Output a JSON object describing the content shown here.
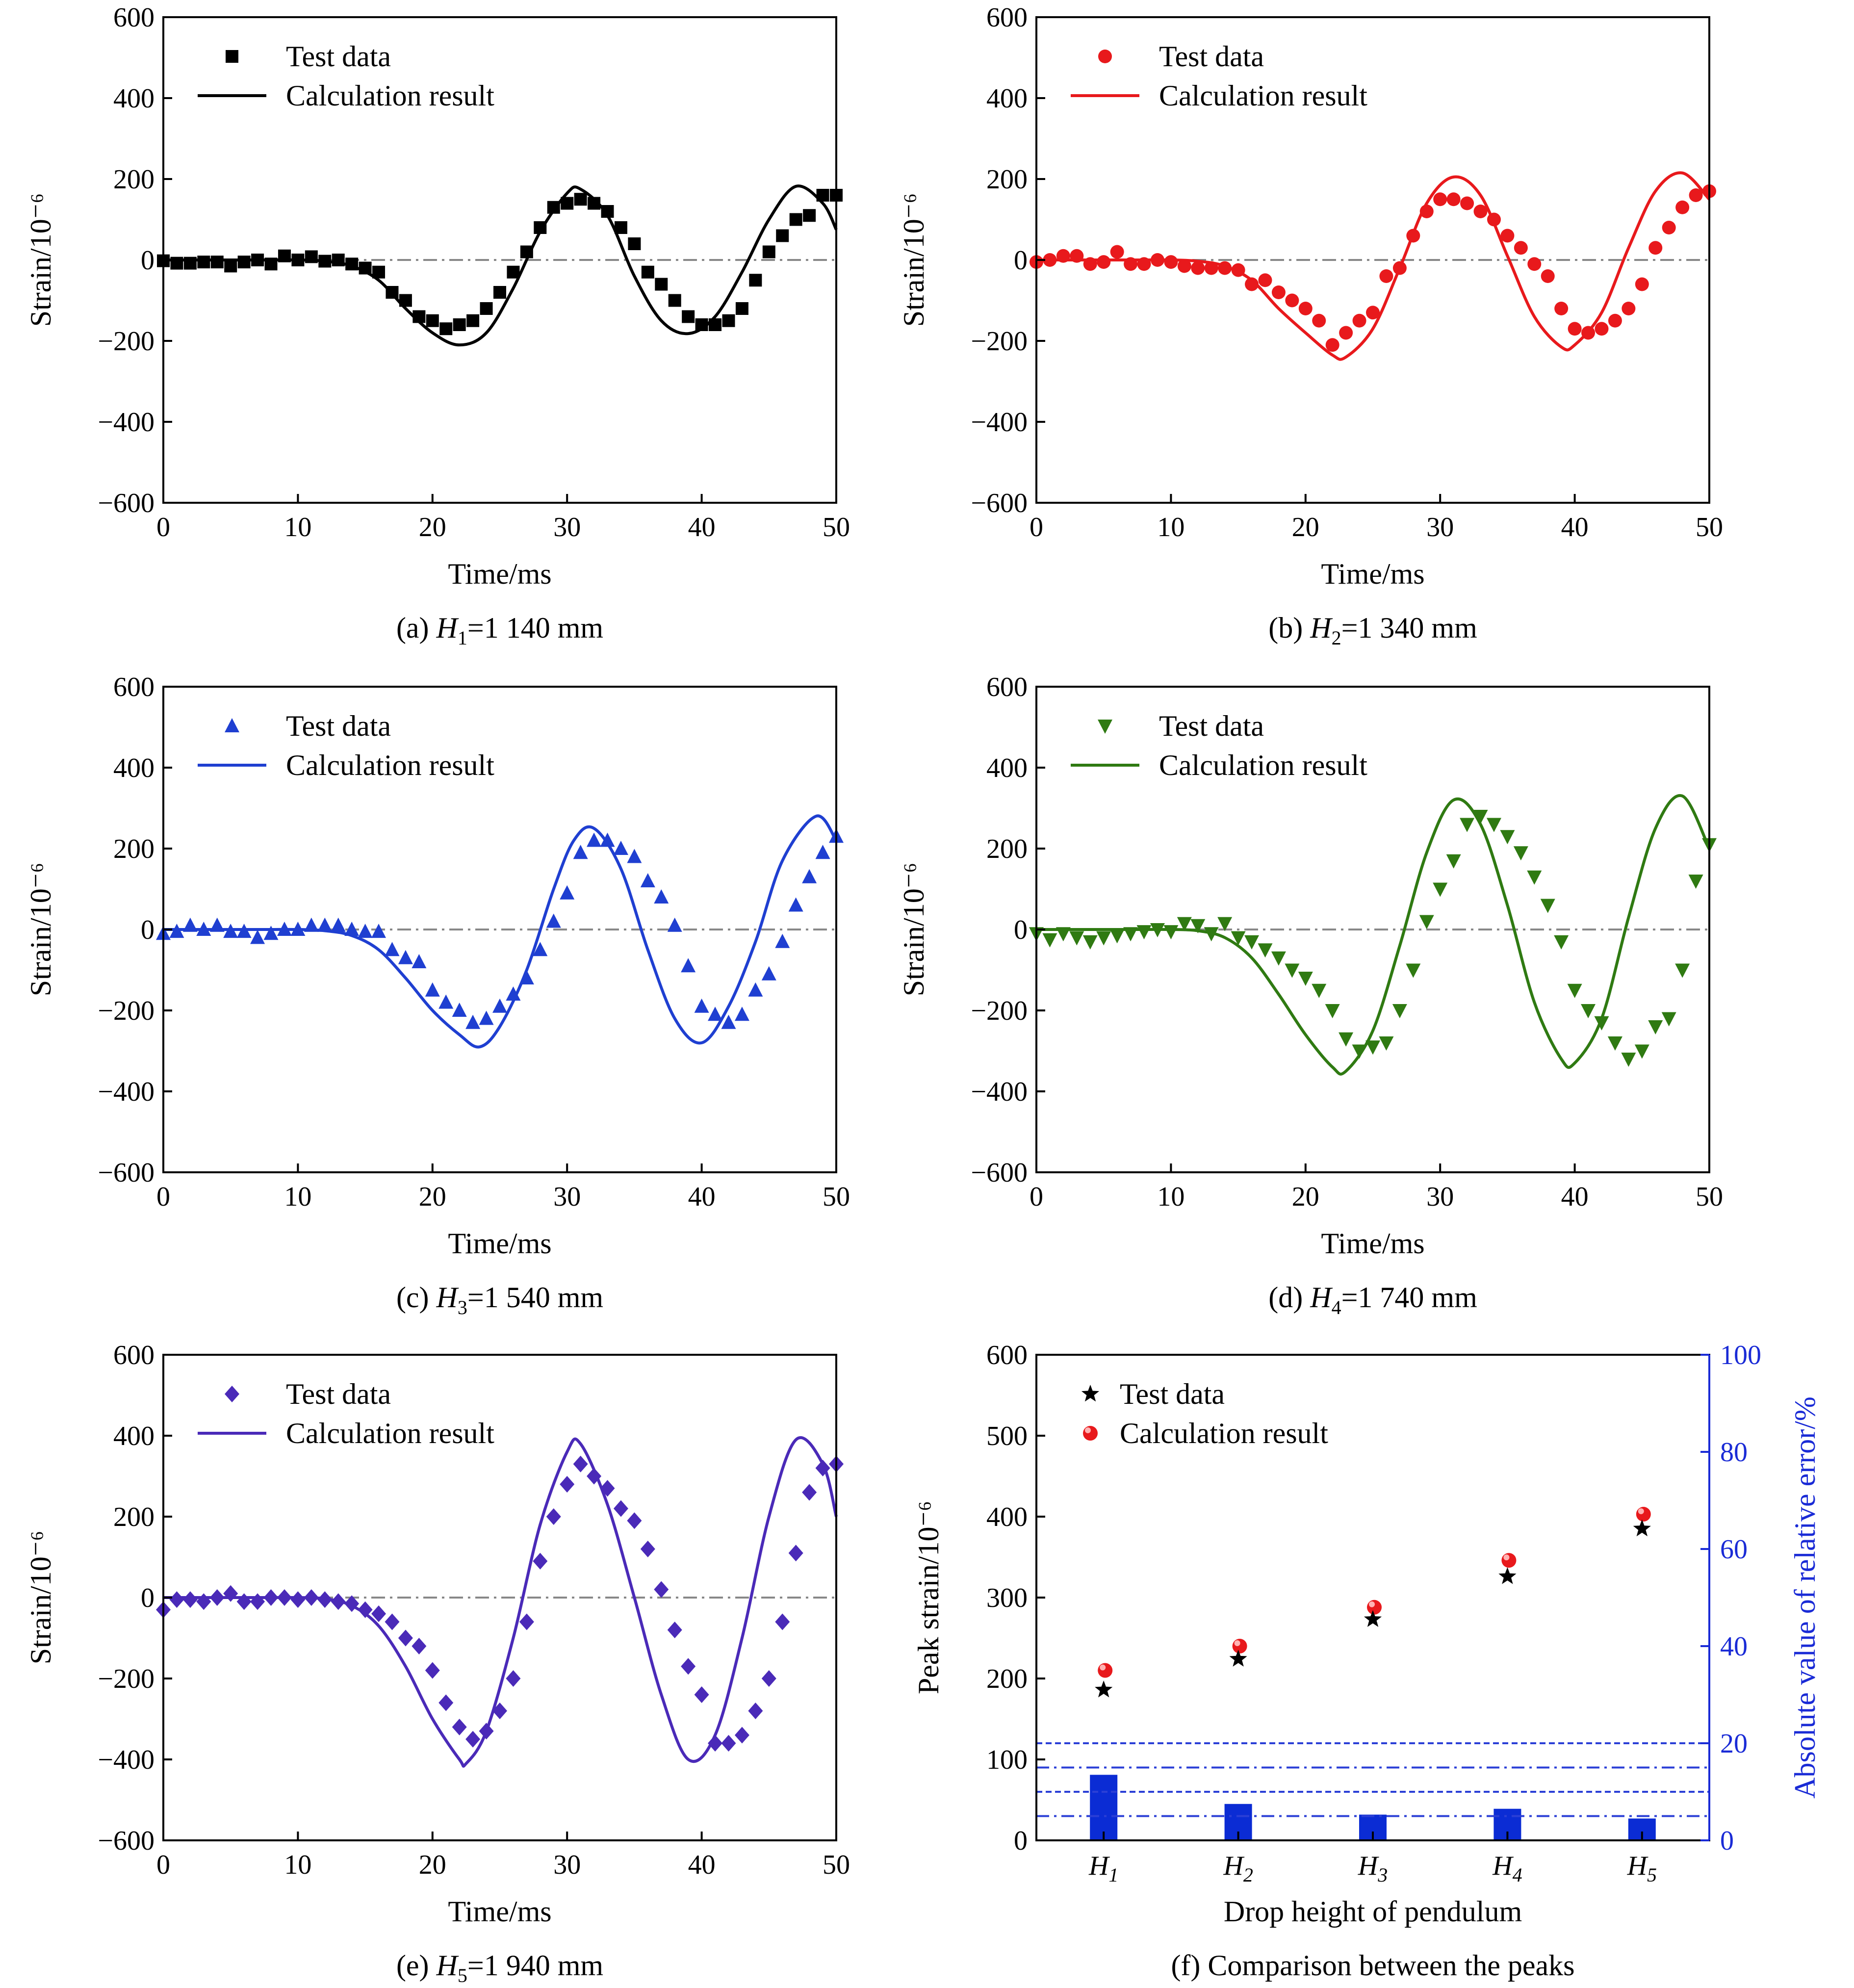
{
  "chart_data": [
    {
      "id": "a",
      "type": "line",
      "caption": {
        "prefix": "(a) ",
        "var": "H",
        "sub": "1",
        "rest": "=1 140 mm"
      },
      "xlabel": "Time/ms",
      "ylabel": "Strain/10⁻⁶",
      "xlim": [
        0,
        50
      ],
      "ylim": [
        -600,
        600
      ],
      "xticks": [
        0,
        10,
        20,
        30,
        40,
        50
      ],
      "yticks": [
        -600,
        -400,
        -200,
        0,
        200,
        400,
        600
      ],
      "ytick_labels": [
        "−600",
        "−400",
        "−200",
        "0",
        "200",
        "400",
        "600"
      ],
      "legend": {
        "position": "top-left",
        "test_label": "Test data",
        "calc_label": "Calculation result"
      },
      "color": "#000000",
      "marker": "square",
      "calc": {
        "x": [
          0,
          2,
          4,
          6,
          8,
          10,
          12,
          14,
          16,
          18,
          20,
          22,
          24,
          26,
          28,
          30,
          31,
          33,
          35,
          37,
          39,
          41,
          43,
          45,
          47,
          49,
          50
        ],
        "y": [
          0,
          0,
          0,
          0,
          0,
          0,
          -3,
          -15,
          -50,
          -120,
          -180,
          -210,
          -180,
          -70,
          70,
          165,
          175,
          110,
          -40,
          -150,
          -182,
          -140,
          -30,
          100,
          182,
          140,
          75
        ]
      },
      "test": {
        "x": [
          0,
          1,
          2,
          3,
          4,
          5,
          6,
          7,
          8,
          9,
          10,
          11,
          12,
          13,
          14,
          15,
          16,
          17,
          18,
          19,
          20,
          21,
          22,
          23,
          24,
          25,
          26,
          27,
          28,
          29,
          30,
          31,
          32,
          33,
          34,
          35,
          36,
          37,
          38,
          39,
          40,
          41,
          42,
          43,
          44,
          45,
          46,
          47,
          48,
          49,
          50
        ],
        "y": [
          -2,
          -8,
          -8,
          -5,
          -5,
          -15,
          -5,
          0,
          -10,
          10,
          0,
          8,
          -3,
          0,
          -10,
          -20,
          -30,
          -80,
          -100,
          -140,
          -150,
          -170,
          -160,
          -150,
          -120,
          -80,
          -30,
          20,
          80,
          130,
          140,
          150,
          140,
          120,
          80,
          40,
          -30,
          -60,
          -100,
          -140,
          -160,
          -160,
          -150,
          -120,
          -50,
          20,
          60,
          100,
          110,
          160,
          160
        ]
      }
    },
    {
      "id": "b",
      "type": "line",
      "caption": {
        "prefix": "(b) ",
        "var": "H",
        "sub": "2",
        "rest": "=1 340 mm"
      },
      "xlabel": "Time/ms",
      "ylabel": "Strain/10⁻⁶",
      "xlim": [
        0,
        50
      ],
      "ylim": [
        -600,
        600
      ],
      "xticks": [
        0,
        10,
        20,
        30,
        40,
        50
      ],
      "yticks": [
        -600,
        -400,
        -200,
        0,
        200,
        400,
        600
      ],
      "ytick_labels": [
        "−600",
        "−400",
        "−200",
        "0",
        "200",
        "400",
        "600"
      ],
      "legend": {
        "position": "top-left",
        "test_label": "Test data",
        "calc_label": "Calculation result"
      },
      "color": "#e8191c",
      "marker": "circle",
      "calc": {
        "x": [
          0,
          2,
          4,
          6,
          8,
          10,
          12,
          14,
          16,
          18,
          20,
          22,
          23,
          25,
          27,
          29,
          31,
          33,
          35,
          37,
          39,
          40,
          42,
          44,
          46,
          48,
          50
        ],
        "y": [
          0,
          0,
          0,
          0,
          0,
          0,
          -3,
          -15,
          -50,
          -120,
          -180,
          -235,
          -240,
          -170,
          -20,
          140,
          205,
          160,
          10,
          -140,
          -215,
          -210,
          -130,
          30,
          170,
          215,
          150
        ]
      },
      "test": {
        "x": [
          0,
          1,
          2,
          3,
          4,
          5,
          6,
          7,
          8,
          9,
          10,
          11,
          12,
          13,
          14,
          15,
          16,
          17,
          18,
          19,
          20,
          21,
          22,
          23,
          24,
          25,
          26,
          27,
          28,
          29,
          30,
          31,
          32,
          33,
          34,
          35,
          36,
          37,
          38,
          39,
          40,
          41,
          42,
          43,
          44,
          45,
          46,
          47,
          48,
          49,
          50
        ],
        "y": [
          -5,
          0,
          10,
          10,
          -10,
          -5,
          20,
          -10,
          -10,
          0,
          -5,
          -15,
          -20,
          -20,
          -20,
          -25,
          -60,
          -50,
          -80,
          -100,
          -120,
          -150,
          -210,
          -180,
          -150,
          -130,
          -40,
          -20,
          60,
          120,
          150,
          150,
          140,
          120,
          100,
          60,
          30,
          -10,
          -40,
          -120,
          -170,
          -180,
          -170,
          -150,
          -120,
          -60,
          30,
          80,
          130,
          160,
          170
        ]
      }
    },
    {
      "id": "c",
      "type": "line",
      "caption": {
        "prefix": "(c) ",
        "var": "H",
        "sub": "3",
        "rest": "=1 540 mm"
      },
      "xlabel": "Time/ms",
      "ylabel": "Strain/10⁻⁶",
      "xlim": [
        0,
        50
      ],
      "ylim": [
        -600,
        600
      ],
      "xticks": [
        0,
        10,
        20,
        30,
        40,
        50
      ],
      "yticks": [
        -600,
        -400,
        -200,
        0,
        200,
        400,
        600
      ],
      "ytick_labels": [
        "−600",
        "−400",
        "−200",
        "0",
        "200",
        "400",
        "600"
      ],
      "legend": {
        "position": "top-left",
        "test_label": "Test data",
        "calc_label": "Calculation result"
      },
      "color": "#1f3fd1",
      "marker": "triangle-up",
      "calc": {
        "x": [
          0,
          2,
          4,
          6,
          8,
          10,
          12,
          14,
          16,
          18,
          20,
          22,
          23.5,
          25,
          27,
          29,
          30.5,
          32,
          34,
          36,
          38,
          40,
          42,
          44,
          46,
          48.5,
          50
        ],
        "y": [
          0,
          0,
          0,
          0,
          0,
          0,
          -3,
          -15,
          -50,
          -120,
          -200,
          -260,
          -290,
          -240,
          -100,
          100,
          220,
          250,
          150,
          -50,
          -220,
          -280,
          -190,
          -30,
          170,
          280,
          220
        ]
      },
      "test": {
        "x": [
          0,
          1,
          2,
          3,
          4,
          5,
          6,
          7,
          8,
          9,
          10,
          11,
          12,
          13,
          14,
          15,
          16,
          17,
          18,
          19,
          20,
          21,
          22,
          23,
          24,
          25,
          26,
          27,
          28,
          29,
          30,
          31,
          32,
          33,
          34,
          35,
          36,
          37,
          38,
          39,
          40,
          41,
          42,
          43,
          44,
          45,
          46,
          47,
          48,
          49,
          50
        ],
        "y": [
          -10,
          -5,
          10,
          0,
          10,
          -5,
          -5,
          -20,
          -10,
          0,
          0,
          10,
          10,
          10,
          0,
          -5,
          -5,
          -50,
          -70,
          -80,
          -150,
          -180,
          -200,
          -230,
          -220,
          -190,
          -160,
          -120,
          -50,
          20,
          90,
          190,
          220,
          220,
          200,
          180,
          120,
          80,
          10,
          -90,
          -190,
          -210,
          -230,
          -210,
          -150,
          -110,
          -30,
          60,
          130,
          190,
          230
        ]
      }
    },
    {
      "id": "d",
      "type": "line",
      "caption": {
        "prefix": "(d) ",
        "var": "H",
        "sub": "4",
        "rest": "=1 740 mm"
      },
      "xlabel": "Time/ms",
      "ylabel": "Strain/10⁻⁶",
      "xlim": [
        0,
        50
      ],
      "ylim": [
        -600,
        600
      ],
      "xticks": [
        0,
        10,
        20,
        30,
        40,
        50
      ],
      "yticks": [
        -600,
        -400,
        -200,
        0,
        200,
        400,
        600
      ],
      "ytick_labels": [
        "−600",
        "−400",
        "−200",
        "0",
        "200",
        "400",
        "600"
      ],
      "legend": {
        "position": "top-left",
        "test_label": "Test data",
        "calc_label": "Calculation result"
      },
      "color": "#2f7a12",
      "marker": "triangle-down",
      "calc": {
        "x": [
          0,
          2,
          4,
          6,
          8,
          10,
          12,
          14,
          16,
          18,
          20,
          22,
          23,
          25,
          27,
          29,
          31,
          33,
          35,
          37,
          39,
          40,
          42,
          44,
          46,
          48,
          50
        ],
        "y": [
          0,
          0,
          0,
          0,
          0,
          0,
          -3,
          -20,
          -70,
          -160,
          -260,
          -340,
          -350,
          -250,
          -40,
          190,
          320,
          260,
          60,
          -180,
          -320,
          -330,
          -220,
          30,
          250,
          330,
          200
        ]
      },
      "test": {
        "x": [
          0,
          1,
          2,
          3,
          4,
          5,
          6,
          7,
          8,
          9,
          10,
          11,
          12,
          13,
          14,
          15,
          16,
          17,
          18,
          19,
          20,
          21,
          22,
          23,
          24,
          25,
          26,
          27,
          28,
          29,
          30,
          31,
          32,
          33,
          34,
          35,
          36,
          37,
          38,
          39,
          40,
          41,
          42,
          43,
          44,
          45,
          46,
          47,
          48,
          49,
          50
        ],
        "y": [
          -10,
          -25,
          -10,
          -20,
          -30,
          -20,
          -15,
          -10,
          -5,
          0,
          -5,
          15,
          10,
          -10,
          15,
          -20,
          -30,
          -50,
          -70,
          -100,
          -120,
          -150,
          -200,
          -270,
          -300,
          -290,
          -280,
          -200,
          -100,
          20,
          100,
          170,
          260,
          280,
          260,
          230,
          190,
          130,
          60,
          -30,
          -150,
          -200,
          -230,
          -280,
          -320,
          -300,
          -240,
          -220,
          -100,
          120,
          210
        ]
      }
    },
    {
      "id": "e",
      "type": "line",
      "caption": {
        "prefix": "(e) ",
        "var": "H",
        "sub": "5",
        "rest": "=1 940 mm"
      },
      "xlabel": "Time/ms",
      "ylabel": "Strain/10⁻⁶",
      "xlim": [
        0,
        50
      ],
      "ylim": [
        -600,
        600
      ],
      "xticks": [
        0,
        10,
        20,
        30,
        40,
        50
      ],
      "yticks": [
        -600,
        -400,
        -200,
        0,
        200,
        400,
        600
      ],
      "ytick_labels": [
        "−600",
        "−400",
        "−200",
        "0",
        "200",
        "400",
        "600"
      ],
      "legend": {
        "position": "top-left",
        "test_label": "Test data",
        "calc_label": "Calculation result"
      },
      "color": "#4a2ab8",
      "marker": "diamond",
      "calc": {
        "x": [
          0,
          2,
          4,
          6,
          8,
          10,
          12,
          14,
          16,
          18,
          20,
          22,
          22.5,
          24,
          26,
          28,
          30,
          31,
          33,
          35,
          37,
          39,
          41,
          43,
          45,
          47,
          49,
          50
        ],
        "y": [
          0,
          0,
          0,
          0,
          0,
          0,
          -3,
          -20,
          -70,
          -170,
          -300,
          -400,
          -410,
          -330,
          -100,
          180,
          360,
          380,
          230,
          0,
          -240,
          -400,
          -340,
          -100,
          200,
          390,
          330,
          200
        ]
      },
      "test": {
        "x": [
          0,
          1,
          2,
          3,
          4,
          5,
          6,
          7,
          8,
          9,
          10,
          11,
          12,
          13,
          14,
          15,
          16,
          17,
          18,
          19,
          20,
          21,
          22,
          23,
          24,
          25,
          26,
          27,
          28,
          29,
          30,
          31,
          32,
          33,
          34,
          35,
          36,
          37,
          38,
          39,
          40,
          41,
          42,
          43,
          44,
          45,
          46,
          47,
          48,
          49,
          50
        ],
        "y": [
          -30,
          -5,
          -5,
          -10,
          0,
          10,
          -10,
          -10,
          0,
          0,
          -5,
          0,
          -5,
          -10,
          -15,
          -30,
          -40,
          -60,
          -100,
          -120,
          -180,
          -260,
          -320,
          -350,
          -330,
          -280,
          -200,
          -60,
          90,
          200,
          280,
          330,
          300,
          270,
          220,
          190,
          120,
          20,
          -80,
          -170,
          -240,
          -360,
          -360,
          -340,
          -280,
          -200,
          -60,
          110,
          260,
          320,
          330
        ]
      }
    },
    {
      "id": "f",
      "type": "scatter+bar",
      "caption": {
        "prefix": "(f) ",
        "var": "",
        "sub": "",
        "rest": "Comparison between the peaks"
      },
      "xlabel": "Drop height of pendulum",
      "ylabel": "Peak strain/10⁻⁶",
      "ylabel_right": "Absolute value of relative error/%",
      "right_axis_color": "#1a2bd6",
      "categories": [
        {
          "var": "H",
          "sub": "1"
        },
        {
          "var": "H",
          "sub": "2"
        },
        {
          "var": "H",
          "sub": "3"
        },
        {
          "var": "H",
          "sub": "4"
        },
        {
          "var": "H",
          "sub": "5"
        }
      ],
      "ylim": [
        0,
        600
      ],
      "yticks": [
        0,
        100,
        200,
        300,
        400,
        500,
        600
      ],
      "ylim_right": [
        0,
        100
      ],
      "yticks_right": [
        0,
        20,
        40,
        60,
        80,
        100
      ],
      "legend": {
        "position": "top-left",
        "test_label": "Test data",
        "calc_label": "Calculation result"
      },
      "test_peaks": [
        186,
        224,
        273,
        326,
        385
      ],
      "calc_peaks": [
        210,
        240,
        288,
        346,
        403
      ],
      "relative_error_pct": [
        13.5,
        7.5,
        5.3,
        6.5,
        4.5
      ],
      "reference_lines_pct": [
        5,
        10,
        15,
        20
      ],
      "bar_color": "#0b2cd4",
      "star_color": "#000000",
      "dot_color": "#e8191c"
    }
  ]
}
